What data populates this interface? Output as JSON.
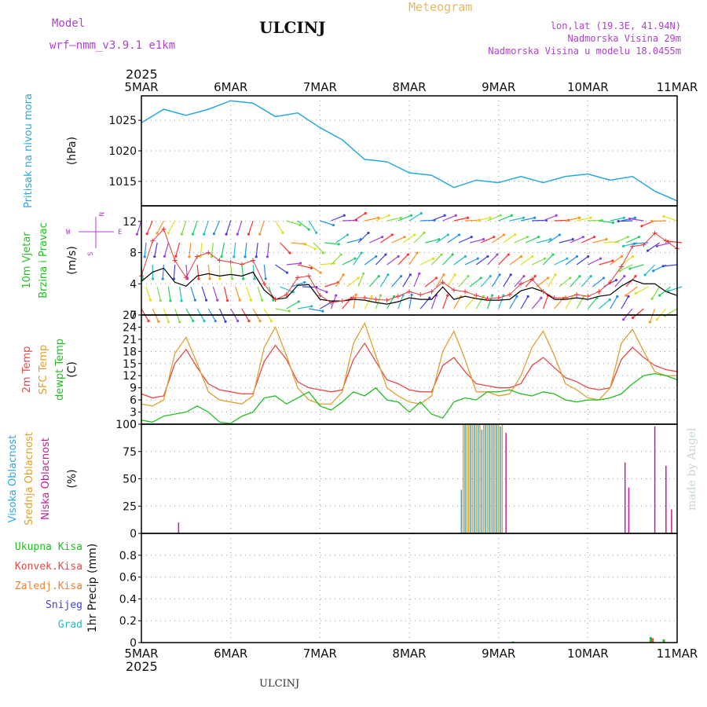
{
  "header": {
    "model_label": "Model",
    "model_name": "wrf—nmm_v3.9.1  e1km",
    "station": "ULCINJ",
    "meteogram_label": "Meteogram",
    "coords": "lon,lat (19.3E, 41.94N)",
    "altitude": "Nadmorska Visina 29m",
    "model_altitude": "Nadmorska Visina u modelu 18.0455m",
    "footer_station": "ULCINJ",
    "credit": "made by Angel",
    "year": "2025"
  },
  "colors": {
    "pressure": "#29a8e0",
    "wind_title": "#20c020",
    "wind_speed": "#000000",
    "gust": "#e83a3a",
    "t2m": "#e84848",
    "sfc": "#e0a030",
    "dewpt": "#20c020",
    "high_cloud": "#29a8e0",
    "mid_cloud": "#e0a030",
    "low_cloud": "#c01c9c",
    "total_precip": "#20c020",
    "conv_precip": "#e84848",
    "frozen_precip": "#f08030",
    "snow": "#4040e0",
    "hail": "#20c0c0",
    "compass": "#b040d0",
    "header_purple": "#b040d0",
    "meteogram_title": "#e8b860"
  },
  "time_axis": {
    "ticks": [
      "5MAR",
      "6MAR",
      "7MAR",
      "8MAR",
      "9MAR",
      "10MAR",
      "11MAR"
    ],
    "range_hours": [
      0,
      144
    ]
  },
  "compass_labels": {
    "n": "N",
    "s": "S",
    "w": "W",
    "e": "E"
  },
  "chart_data": [
    {
      "type": "line",
      "name": "pressure",
      "ylabel_lines": [
        "Pritisak na nivou mora"
      ],
      "unit": "(hPa)",
      "ylim": [
        1011,
        1029
      ],
      "yticks": [
        1015,
        1020,
        1025
      ],
      "x": [
        0,
        6,
        12,
        18,
        24,
        30,
        36,
        42,
        48,
        54,
        60,
        66,
        72,
        78,
        84,
        90,
        96,
        102,
        108,
        114,
        120,
        126,
        132,
        138,
        144
      ],
      "series": [
        {
          "values": [
            1024.6,
            1026.8,
            1025.8,
            1026.8,
            1028.2,
            1027.8,
            1025.6,
            1026.2,
            1023.8,
            1021.8,
            1018.6,
            1018.2,
            1016.4,
            1016.0,
            1014.0,
            1015.2,
            1014.8,
            1015.8,
            1014.8,
            1015.8,
            1016.2,
            1015.2,
            1015.8,
            1013.4,
            1011.8
          ]
        }
      ],
      "grid": true
    },
    {
      "type": "line",
      "name": "wind",
      "ylabel_lines": [
        "10m Vjetar",
        "Brzina i Pravac"
      ],
      "unit": "(m/s)",
      "ylim": [
        0,
        14
      ],
      "yticks": [
        0,
        4,
        8,
        12
      ],
      "x": [
        0,
        3,
        6,
        9,
        12,
        15,
        18,
        21,
        24,
        27,
        30,
        33,
        36,
        39,
        42,
        45,
        48,
        51,
        54,
        57,
        60,
        63,
        66,
        69,
        72,
        75,
        78,
        81,
        84,
        87,
        90,
        93,
        96,
        99,
        102,
        105,
        108,
        111,
        114,
        117,
        120,
        123,
        126,
        129,
        132,
        135,
        138,
        141,
        144
      ],
      "series": [
        {
          "values": [
            4.3,
            5.5,
            6.0,
            4.2,
            3.7,
            5.0,
            5.3,
            5.0,
            5.2,
            5.0,
            5.5,
            3.2,
            2.0,
            2.2,
            3.8,
            3.9,
            2.0,
            1.8,
            1.8,
            2.0,
            1.9,
            1.6,
            1.4,
            1.7,
            2.2,
            2.0,
            2.0,
            3.6,
            2.0,
            2.4,
            2.1,
            1.9,
            1.9,
            2.0,
            3.1,
            3.5,
            3.0,
            2.0,
            2.0,
            2.2,
            2.0,
            2.4,
            2.6,
            3.7,
            4.5,
            4.0,
            4.0,
            3.0,
            2.5
          ]
        },
        {
          "values": [
            5.0,
            9.5,
            11.0,
            7.0,
            4.8,
            7.5,
            8.0,
            7.0,
            6.8,
            6.5,
            7.0,
            4.0,
            2.0,
            2.6,
            4.8,
            5.0,
            2.5,
            1.6,
            1.8,
            2.2,
            2.2,
            2.0,
            1.9,
            2.4,
            3.0,
            2.6,
            3.0,
            4.2,
            3.2,
            3.0,
            2.5,
            2.1,
            2.2,
            2.6,
            4.0,
            4.6,
            3.0,
            2.2,
            2.2,
            2.6,
            2.4,
            3.0,
            4.2,
            6.2,
            8.8,
            9.0,
            10.5,
            9.5,
            8.5
          ]
        }
      ],
      "arrow_dir_deg": [
        150,
        155,
        160,
        160,
        150,
        150,
        150,
        155,
        150,
        150,
        150,
        150,
        100,
        60,
        80,
        100,
        60,
        20,
        40,
        10,
        30,
        20,
        30,
        20,
        10,
        40,
        20,
        20,
        30,
        40,
        30,
        20,
        20,
        30,
        30,
        40,
        20,
        40,
        30,
        30,
        40,
        50,
        30,
        30,
        220,
        230,
        200,
        220,
        240
      ],
      "grid": true
    },
    {
      "type": "line",
      "name": "temperature",
      "ylabel_lines": [
        "2m Temp",
        "SFC Temp",
        "dewpt Temp"
      ],
      "unit": "(C)",
      "ylim": [
        0,
        27
      ],
      "yticks": [
        0,
        3,
        6,
        9,
        12,
        15,
        18,
        21,
        24,
        27
      ],
      "x": [
        0,
        3,
        6,
        9,
        12,
        15,
        18,
        21,
        24,
        27,
        30,
        33,
        36,
        39,
        42,
        45,
        48,
        51,
        54,
        57,
        60,
        63,
        66,
        69,
        72,
        75,
        78,
        81,
        84,
        87,
        90,
        93,
        96,
        99,
        102,
        105,
        108,
        111,
        114,
        117,
        120,
        123,
        126,
        129,
        132,
        135,
        138,
        141,
        144
      ],
      "series": [
        {
          "values": [
            7.5,
            6.5,
            7.0,
            15.0,
            18.5,
            14.0,
            10.0,
            8.5,
            8.0,
            7.5,
            7.5,
            15.5,
            19.5,
            16.0,
            10.5,
            9.0,
            8.5,
            8.0,
            8.5,
            16.0,
            20.0,
            15.5,
            11.0,
            10.0,
            8.5,
            8.0,
            8.0,
            14.5,
            16.5,
            13.0,
            10.0,
            9.5,
            9.0,
            9.0,
            10.0,
            14.5,
            16.5,
            14.0,
            11.5,
            10.5,
            9.0,
            8.5,
            9.0,
            16.0,
            19.0,
            16.5,
            14.5,
            13.5,
            13.0
          ]
        },
        {
          "values": [
            5.0,
            4.5,
            6.0,
            17.5,
            21.5,
            15.0,
            8.0,
            6.0,
            5.5,
            5.0,
            7.0,
            19.0,
            24.0,
            17.0,
            9.0,
            6.0,
            5.0,
            5.0,
            8.0,
            20.0,
            25.0,
            17.0,
            9.0,
            7.0,
            5.5,
            5.0,
            7.0,
            18.0,
            23.0,
            16.0,
            8.0,
            8.0,
            7.0,
            7.5,
            12.0,
            19.0,
            23.0,
            17.0,
            10.0,
            8.5,
            6.5,
            6.0,
            9.0,
            20.0,
            23.5,
            18.0,
            13.0,
            12.0,
            12.0
          ]
        },
        {
          "values": [
            1.0,
            0.5,
            2.0,
            2.5,
            3.0,
            4.5,
            3.0,
            0.5,
            0.2,
            2.0,
            3.0,
            6.5,
            7.0,
            5.0,
            6.5,
            8.0,
            4.5,
            3.5,
            5.5,
            8.0,
            7.0,
            9.0,
            6.0,
            5.5,
            3.0,
            5.5,
            2.5,
            1.5,
            5.5,
            6.5,
            6.0,
            8.0,
            8.0,
            8.5,
            7.5,
            7.0,
            8.0,
            7.5,
            6.0,
            5.5,
            6.0,
            6.0,
            6.5,
            7.5,
            10.0,
            12.0,
            12.5,
            12.0,
            11.0
          ]
        }
      ],
      "grid": true
    },
    {
      "type": "bar",
      "name": "cloud",
      "ylabel_lines": [
        "Visoka Oblacnost",
        "Srednja Oblacnost",
        "Niska Oblacnost"
      ],
      "unit": "(%)",
      "ylim": [
        0,
        100
      ],
      "yticks": [
        0,
        25,
        50,
        75,
        100
      ],
      "series": [
        {
          "name": "high",
          "points": [
            [
              86,
              40
            ],
            [
              87,
              100
            ],
            [
              88.5,
              100
            ],
            [
              89.5,
              100
            ],
            [
              90.5,
              100
            ],
            [
              91.5,
              95
            ],
            [
              92.5,
              100
            ],
            [
              93.5,
              100
            ],
            [
              94.5,
              100
            ],
            [
              95.5,
              100
            ],
            [
              96.5,
              98
            ]
          ]
        },
        {
          "name": "mid",
          "points": [
            [
              86.5,
              100
            ],
            [
              87.5,
              100
            ],
            [
              88,
              100
            ],
            [
              89,
              100
            ],
            [
              90,
              100
            ],
            [
              91,
              100
            ],
            [
              92,
              100
            ],
            [
              93,
              100
            ],
            [
              94,
              100
            ],
            [
              95,
              100
            ],
            [
              96,
              100
            ],
            [
              97,
              100
            ]
          ]
        },
        {
          "name": "low",
          "points": [
            [
              10,
              10
            ],
            [
              98,
              92
            ],
            [
              130,
              65
            ],
            [
              131,
              42
            ],
            [
              138,
              98
            ],
            [
              141,
              62
            ],
            [
              142.5,
              22
            ]
          ]
        }
      ],
      "grid": true
    },
    {
      "type": "bar",
      "name": "precipitation",
      "ylabel_lines": [
        "1hr Precip"
      ],
      "unit": "(mm)",
      "legend": [
        "Ukupna Kisa",
        "Konvek.Kisa",
        "Zaledj.Kisa",
        "Snijeg",
        "Grad"
      ],
      "ylim": [
        0,
        1.0
      ],
      "yticks": [
        0,
        0.2,
        0.4,
        0.6,
        0.8
      ],
      "series": [
        {
          "name": "total",
          "points": [
            [
              100,
              0.01
            ],
            [
              137,
              0.05
            ],
            [
              140.5,
              0.03
            ]
          ]
        },
        {
          "name": "convective",
          "points": [
            [
              137.5,
              0.04
            ]
          ]
        }
      ],
      "grid": true
    }
  ]
}
